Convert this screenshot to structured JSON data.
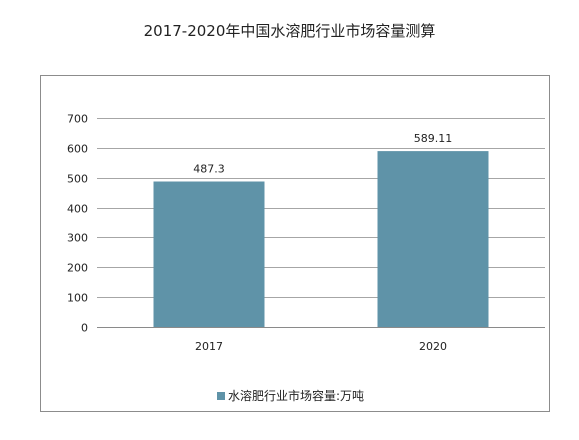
{
  "chart_data": {
    "type": "bar",
    "title": "2017-2020年中国水溶肥行业市场容量测算",
    "categories": [
      "2017",
      "2020"
    ],
    "series": [
      {
        "name": "水溶肥行业市场容量:万吨",
        "values": [
          487.3,
          589.11
        ],
        "data_labels": [
          "487.3",
          "589.11"
        ],
        "color": "#5f93a8"
      }
    ],
    "ylim": [
      0,
      700
    ],
    "yticks": [
      0,
      100,
      200,
      300,
      400,
      500,
      600,
      700
    ],
    "grid": true,
    "legend": "bottom-center"
  }
}
